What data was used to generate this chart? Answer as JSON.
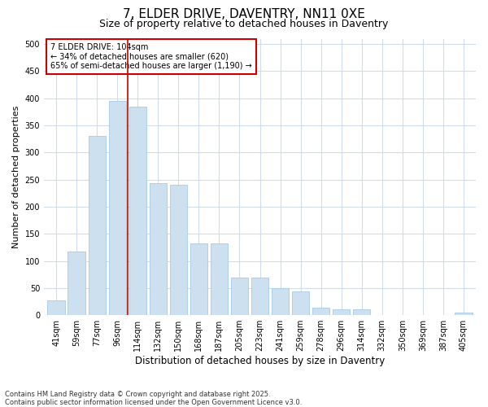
{
  "title": "7, ELDER DRIVE, DAVENTRY, NN11 0XE",
  "subtitle": "Size of property relative to detached houses in Daventry",
  "xlabel": "Distribution of detached houses by size in Daventry",
  "ylabel": "Number of detached properties",
  "categories": [
    "41sqm",
    "59sqm",
    "77sqm",
    "96sqm",
    "114sqm",
    "132sqm",
    "150sqm",
    "168sqm",
    "187sqm",
    "205sqm",
    "223sqm",
    "241sqm",
    "259sqm",
    "278sqm",
    "296sqm",
    "314sqm",
    "332sqm",
    "350sqm",
    "369sqm",
    "387sqm",
    "405sqm"
  ],
  "values": [
    27,
    118,
    330,
    395,
    385,
    243,
    240,
    133,
    133,
    70,
    70,
    50,
    44,
    14,
    11,
    11,
    0,
    0,
    0,
    0,
    5
  ],
  "bar_color": "#cce0f0",
  "bar_edge_color": "#a8c8e8",
  "vline_x": 3.5,
  "vline_color": "#cc0000",
  "annotation_text": "7 ELDER DRIVE: 104sqm\n← 34% of detached houses are smaller (620)\n65% of semi-detached houses are larger (1,190) →",
  "annotation_box_color": "#ffffff",
  "annotation_box_edge_color": "#cc0000",
  "ylim": [
    0,
    510
  ],
  "yticks": [
    0,
    50,
    100,
    150,
    200,
    250,
    300,
    350,
    400,
    450,
    500
  ],
  "footer": "Contains HM Land Registry data © Crown copyright and database right 2025.\nContains public sector information licensed under the Open Government Licence v3.0.",
  "background_color": "#ffffff",
  "plot_background_color": "#ffffff",
  "title_fontsize": 11,
  "subtitle_fontsize": 9,
  "axis_label_fontsize": 8,
  "tick_fontsize": 7,
  "footer_fontsize": 6,
  "annotation_fontsize": 7
}
